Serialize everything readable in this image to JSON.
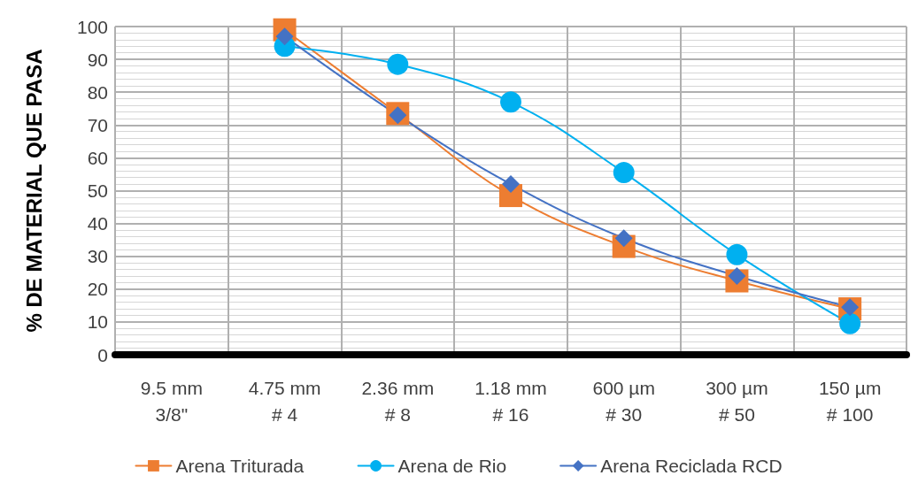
{
  "chart_data": {
    "type": "line",
    "ylabel": "% DE MATERIAL QUE PASA",
    "categories": [
      "9.5 mm\n3/8\"",
      "4.75 mm\n# 4",
      "2.36 mm\n# 8",
      "1.18 mm\n# 16",
      "600 µm\n# 30",
      "300 µm\n# 50",
      "150 µm\n# 100"
    ],
    "series": [
      {
        "name": "Arena Triturada",
        "color": "#ed7d31",
        "marker": "square",
        "values": [
          null,
          99,
          73.5,
          48.5,
          33,
          22.5,
          14
        ]
      },
      {
        "name": "Arena de Rio",
        "color": "#00b0f0",
        "marker": "circle",
        "values": [
          null,
          94,
          88.5,
          77,
          55.5,
          30.5,
          9.5
        ]
      },
      {
        "name": "Arena Reciclada RCD",
        "color": "#4472c4",
        "marker": "diamond",
        "values": [
          null,
          97,
          73,
          52,
          35.5,
          24,
          14.5
        ]
      }
    ],
    "ylim": [
      0,
      100
    ],
    "yticks": [
      0,
      10,
      20,
      30,
      40,
      50,
      60,
      70,
      80,
      90,
      100
    ],
    "grid": true,
    "legend": "bottom",
    "line_style": "solid"
  }
}
